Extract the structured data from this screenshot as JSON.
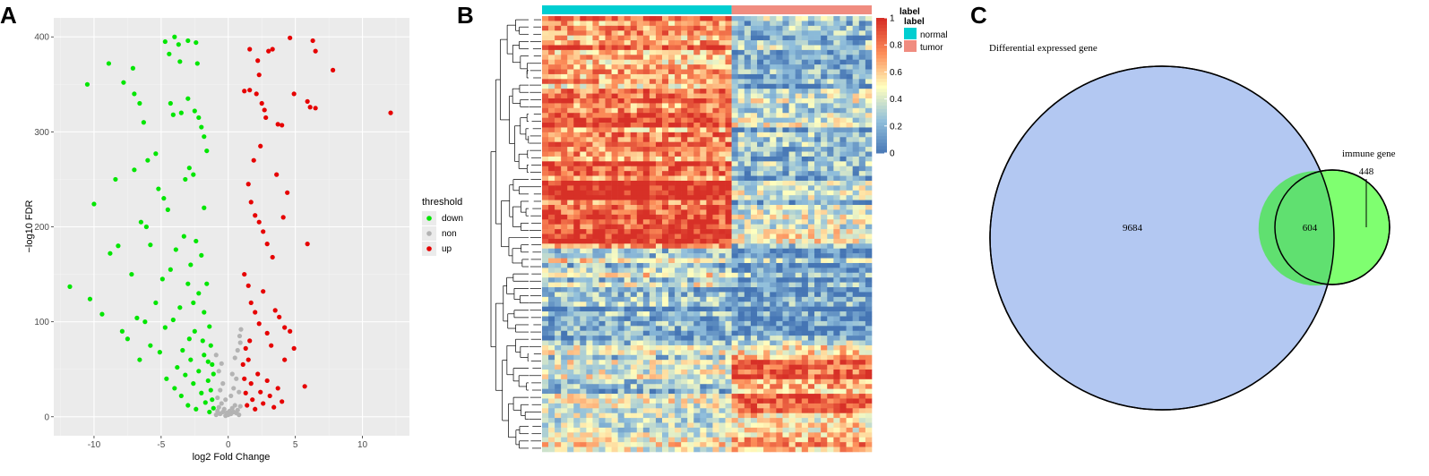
{
  "panels": {
    "a": "A",
    "b": "B",
    "c": "C"
  },
  "chart_data": [
    {
      "type": "scatter",
      "panel": "A",
      "title": "",
      "xlabel": "log2 Fold Change",
      "ylabel": "−log10 FDR",
      "xlim": [
        -13,
        13.5
      ],
      "ylim": [
        -20,
        420
      ],
      "x_ticks": [
        -10,
        -5,
        0,
        5,
        10
      ],
      "y_ticks": [
        0,
        100,
        200,
        300,
        400
      ],
      "grid": true,
      "legend": {
        "title": "threshold",
        "position": "right"
      },
      "series": [
        {
          "name": "down",
          "color": "#00e600",
          "points": [
            [
              -10.5,
              350
            ],
            [
              -8.9,
              372
            ],
            [
              -7.8,
              352
            ],
            [
              -7.1,
              367
            ],
            [
              -7.0,
              340
            ],
            [
              -6.6,
              330
            ],
            [
              -6.3,
              310
            ],
            [
              -5.4,
              277
            ],
            [
              -4.7,
              395
            ],
            [
              -4.4,
              382
            ],
            [
              -4.0,
              400
            ],
            [
              -3.7,
              392
            ],
            [
              -3.6,
              374
            ],
            [
              -3.0,
              396
            ],
            [
              -2.4,
              394
            ],
            [
              -2.3,
              372
            ],
            [
              -10.0,
              224
            ],
            [
              -8.4,
              250
            ],
            [
              -7.0,
              260
            ],
            [
              -6.0,
              270
            ],
            [
              -4.3,
              330
            ],
            [
              -4.1,
              318
            ],
            [
              -3.5,
              320
            ],
            [
              -3.0,
              335
            ],
            [
              -2.5,
              322
            ],
            [
              -2.2,
              315
            ],
            [
              -2.0,
              305
            ],
            [
              -1.8,
              295
            ],
            [
              -1.6,
              280
            ],
            [
              -11.8,
              137
            ],
            [
              -10.3,
              124
            ],
            [
              -9.4,
              108
            ],
            [
              -8.8,
              172
            ],
            [
              -8.2,
              180
            ],
            [
              -7.2,
              150
            ],
            [
              -6.5,
              205
            ],
            [
              -6.1,
              200
            ],
            [
              -5.8,
              181
            ],
            [
              -5.2,
              240
            ],
            [
              -4.8,
              230
            ],
            [
              -4.5,
              218
            ],
            [
              -3.2,
              250
            ],
            [
              -2.9,
              262
            ],
            [
              -2.6,
              255
            ],
            [
              -1.8,
              220
            ],
            [
              -7.9,
              90
            ],
            [
              -7.5,
              82
            ],
            [
              -6.8,
              104
            ],
            [
              -6.6,
              60
            ],
            [
              -6.2,
              100
            ],
            [
              -5.8,
              75
            ],
            [
              -5.4,
              120
            ],
            [
              -5.1,
              68
            ],
            [
              -4.9,
              145
            ],
            [
              -4.7,
              94
            ],
            [
              -4.3,
              155
            ],
            [
              -4.1,
              102
            ],
            [
              -3.9,
              176
            ],
            [
              -3.6,
              115
            ],
            [
              -3.3,
              190
            ],
            [
              -3.0,
              140
            ],
            [
              -2.8,
              160
            ],
            [
              -2.6,
              120
            ],
            [
              -2.4,
              185
            ],
            [
              -2.2,
              130
            ],
            [
              -2.0,
              170
            ],
            [
              -1.8,
              110
            ],
            [
              -1.6,
              140
            ],
            [
              -1.4,
              95
            ],
            [
              -1.3,
              75
            ],
            [
              -1.2,
              55
            ],
            [
              -4.6,
              40
            ],
            [
              -4.0,
              30
            ],
            [
              -3.8,
              52
            ],
            [
              -3.5,
              22
            ],
            [
              -3.2,
              44
            ],
            [
              -3.0,
              12
            ],
            [
              -2.8,
              60
            ],
            [
              -2.6,
              35
            ],
            [
              -2.4,
              8
            ],
            [
              -2.2,
              48
            ],
            [
              -2.0,
              25
            ],
            [
              -1.8,
              65
            ],
            [
              -1.7,
              15
            ],
            [
              -1.5,
              38
            ],
            [
              -1.4,
              5
            ],
            [
              -1.3,
              28
            ],
            [
              -1.2,
              18
            ],
            [
              -1.1,
              45
            ],
            [
              -1.1,
              9
            ],
            [
              -3.4,
              70
            ],
            [
              -2.9,
              82
            ],
            [
              -2.5,
              90
            ],
            [
              -1.9,
              80
            ],
            [
              -1.5,
              58
            ]
          ]
        },
        {
          "name": "non",
          "color": "#b3b3b3",
          "points": [
            [
              -0.9,
              2
            ],
            [
              -0.8,
              6
            ],
            [
              -0.7,
              10
            ],
            [
              -0.6,
              3
            ],
            [
              -0.5,
              14
            ],
            [
              -0.4,
              5
            ],
            [
              -0.3,
              8
            ],
            [
              -0.2,
              1
            ],
            [
              -0.1,
              4
            ],
            [
              0.0,
              2
            ],
            [
              0.1,
              6
            ],
            [
              0.2,
              3
            ],
            [
              0.3,
              9
            ],
            [
              0.4,
              5
            ],
            [
              0.5,
              12
            ],
            [
              0.6,
              4
            ],
            [
              0.7,
              7
            ],
            [
              0.8,
              2
            ],
            [
              0.9,
              11
            ],
            [
              -0.8,
              20
            ],
            [
              -0.6,
              28
            ],
            [
              -0.4,
              35
            ],
            [
              -0.2,
              18
            ],
            [
              0.2,
              22
            ],
            [
              0.4,
              30
            ],
            [
              0.6,
              40
            ],
            [
              0.8,
              26
            ],
            [
              -0.7,
              48
            ],
            [
              -0.5,
              56
            ],
            [
              0.5,
              62
            ],
            [
              0.7,
              70
            ],
            [
              0.9,
              78
            ],
            [
              -0.9,
              65
            ],
            [
              0.3,
              45
            ],
            [
              0.85,
              85
            ],
            [
              0.95,
              92
            ]
          ]
        },
        {
          "name": "up",
          "color": "#e60000",
          "points": [
            [
              1.6,
              387
            ],
            [
              2.2,
              375
            ],
            [
              2.3,
              360
            ],
            [
              3.0,
              385
            ],
            [
              3.3,
              387
            ],
            [
              4.6,
              399
            ],
            [
              6.3,
              396
            ],
            [
              6.5,
              385
            ],
            [
              7.8,
              365
            ],
            [
              12.1,
              320
            ],
            [
              1.2,
              343
            ],
            [
              1.6,
              344
            ],
            [
              2.1,
              340
            ],
            [
              2.5,
              330
            ],
            [
              2.7,
              323
            ],
            [
              2.8,
              315
            ],
            [
              3.7,
              308
            ],
            [
              4.0,
              307
            ],
            [
              4.9,
              340
            ],
            [
              5.9,
              332
            ],
            [
              6.1,
              326
            ],
            [
              6.5,
              325
            ],
            [
              2.4,
              285
            ],
            [
              1.9,
              270
            ],
            [
              1.5,
              245
            ],
            [
              1.7,
              226
            ],
            [
              2.0,
              212
            ],
            [
              2.3,
              205
            ],
            [
              2.6,
              195
            ],
            [
              2.9,
              182
            ],
            [
              3.3,
              168
            ],
            [
              3.6,
              255
            ],
            [
              4.1,
              210
            ],
            [
              4.4,
              236
            ],
            [
              5.9,
              182
            ],
            [
              1.2,
              150
            ],
            [
              1.5,
              138
            ],
            [
              1.7,
              120
            ],
            [
              2.0,
              110
            ],
            [
              2.3,
              98
            ],
            [
              2.6,
              132
            ],
            [
              2.9,
              88
            ],
            [
              3.2,
              75
            ],
            [
              3.5,
              112
            ],
            [
              3.8,
              105
            ],
            [
              4.2,
              94
            ],
            [
              4.6,
              90
            ],
            [
              4.9,
              72
            ],
            [
              4.2,
              60
            ],
            [
              1.1,
              55
            ],
            [
              1.2,
              40
            ],
            [
              1.3,
              25
            ],
            [
              1.4,
              12
            ],
            [
              1.5,
              60
            ],
            [
              1.7,
              35
            ],
            [
              1.8,
              18
            ],
            [
              2.0,
              8
            ],
            [
              2.2,
              45
            ],
            [
              2.4,
              26
            ],
            [
              2.6,
              14
            ],
            [
              2.9,
              38
            ],
            [
              3.1,
              22
            ],
            [
              3.4,
              10
            ],
            [
              3.7,
              30
            ],
            [
              4.0,
              16
            ],
            [
              5.7,
              32
            ],
            [
              1.3,
              72
            ],
            [
              1.6,
              80
            ]
          ]
        }
      ]
    },
    {
      "type": "heatmap",
      "panel": "B",
      "title": "",
      "column_groups": [
        {
          "name": "normal",
          "color": "#00ced1",
          "fraction": 0.575
        },
        {
          "name": "tumor",
          "color": "#f08c80",
          "fraction": 0.425
        }
      ],
      "color_scale": {
        "title": "label",
        "min": 0,
        "max": 1,
        "ticks": [
          0,
          0.2,
          0.4,
          0.6,
          0.8,
          1
        ],
        "colors": [
          "#4575b4",
          "#91bfdb",
          "#ffffbf",
          "#fc8d59",
          "#d73027"
        ]
      },
      "legend_title": "label",
      "row_blocks": [
        {
          "rows": 14,
          "normal": 0.78,
          "tumor": 0.3
        },
        {
          "rows": 6,
          "normal": 0.72,
          "tumor": 0.28
        },
        {
          "rows": 10,
          "normal": 0.82,
          "tumor": 0.32
        },
        {
          "rows": 9,
          "normal": 0.9,
          "tumor": 0.26
        },
        {
          "rows": 9,
          "normal": 0.8,
          "tumor": 0.34
        },
        {
          "rows": 8,
          "normal": 0.4,
          "tumor": 0.18
        },
        {
          "rows": 10,
          "normal": 0.16,
          "tumor": 0.06
        },
        {
          "rows": 4,
          "normal": 0.3,
          "tumor": 0.4
        },
        {
          "rows": 12,
          "normal": 0.36,
          "tumor": 0.78
        },
        {
          "rows": 8,
          "normal": 0.42,
          "tumor": 0.6
        }
      ]
    },
    {
      "type": "venn",
      "panel": "C",
      "sets": [
        {
          "name": "Differential expressed gene",
          "color": "#b3c8f2"
        },
        {
          "name": "immune gene",
          "color": "#7fff70"
        }
      ],
      "regions": {
        "only_first": 9684,
        "intersection": 604,
        "only_second": 448
      },
      "intersection_color": "#60e070"
    }
  ]
}
